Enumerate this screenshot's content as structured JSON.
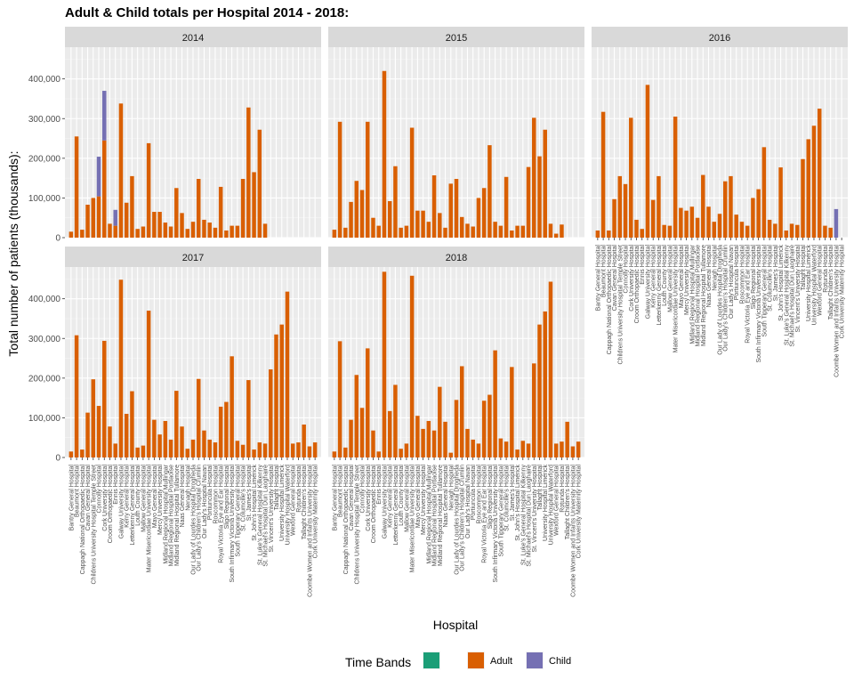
{
  "chart_data": {
    "type": "bar",
    "title": "Adult & Child totals per Hospital 2014 - 2018:",
    "xlabel": "Hospital",
    "ylabel": "Total number of patients (thousands):",
    "ylim": [
      0,
      480000
    ],
    "y_ticks": [
      0,
      100000,
      200000,
      300000,
      400000
    ],
    "y_tick_labels": [
      "0",
      "100,000",
      "200,000",
      "300,000",
      "400,000"
    ],
    "grid": true,
    "facet_by": "year",
    "legend": {
      "title": "Time Bands",
      "position": "bottom",
      "entries": [
        {
          "name": "",
          "color": "#1b9e77"
        },
        {
          "name": "Adult",
          "color": "#d95f02"
        },
        {
          "name": "Child",
          "color": "#7570b3"
        }
      ]
    },
    "categories": [
      "Bantry General Hospital",
      "Beaumont Hospital",
      "Cappagh National Orthopaedic Hospital",
      "Cavan General Hospital",
      "Childrens University Hospital Temple Street",
      "Connolly Hospital",
      "Cork University Hospital",
      "Croom Orthopaedic Hospital",
      "Ennis Hospital",
      "Galway University Hospital",
      "Kerry General Hospital",
      "Letterkenny General Hospital",
      "Louth County Hospital",
      "Mallow General Hospital",
      "Mater Misericordiae University Hospital",
      "Mayo General Hospital",
      "Mercy University Hospital",
      "Midland Regional Hospital Mullingar",
      "Midland Regional Hospital Portlaoise",
      "Midland Regional Hospital Tullamore",
      "Naas General Hospital",
      "Nenagh Hospital",
      "Our Lady of Lourdes Hospital Drogheda",
      "Our Lady's Children's Hospital Crumlin",
      "Our Lady's Hospital Navan",
      "Portiuncula Hospital",
      "Roscommon Hospital",
      "Royal Victoria Eye and Ear Hospital",
      "Sligo Regional Hospital",
      "South Infirmary Victoria University Hospital",
      "South Tipperary General Hospital",
      "St. Columcille's Hospital",
      "St. James's Hospital",
      "St. John's Hospital Limerick",
      "St. Luke's General Hospital Kilkenny",
      "St. Michael's Hospital Dun Laoghaire",
      "St. Vincent's University Hospital",
      "Tallaght Hospital",
      "University Hospital Limerick",
      "University Hospital Waterford",
      "Wexford General Hospital",
      "Rotunda Hospital",
      "Tallaght Children's Hospital",
      "Coombe Women and Infants University Hospital",
      "Cork University Maternity Hospital"
    ],
    "panels": [
      {
        "label": "2014",
        "adult": [
          15000,
          255000,
          20000,
          83000,
          100000,
          104000,
          245000,
          35000,
          30000,
          338000,
          88000,
          155000,
          22000,
          28000,
          238000,
          65000,
          65000,
          38000,
          28000,
          125000,
          62000,
          22000,
          40000,
          148000,
          45000,
          38000,
          25000,
          128000,
          18000,
          30000,
          30000,
          148000,
          328000,
          165000,
          272000,
          35000,
          0,
          0,
          0,
          0,
          0,
          0,
          0,
          0,
          0
        ],
        "child": [
          0,
          0,
          0,
          0,
          0,
          100000,
          125000,
          0,
          40000,
          0,
          0,
          0,
          0,
          0,
          0,
          0,
          0,
          0,
          0,
          0,
          0,
          0,
          0,
          0,
          0,
          0,
          0,
          0,
          0,
          0,
          0,
          0,
          0,
          0,
          0,
          0,
          0,
          0,
          0,
          0,
          0,
          0,
          0,
          0,
          0
        ]
      },
      {
        "label": "2015",
        "adult": [
          20000,
          292000,
          25000,
          90000,
          143000,
          120000,
          292000,
          50000,
          30000,
          420000,
          92000,
          180000,
          25000,
          30000,
          277000,
          68000,
          68000,
          40000,
          157000,
          62000,
          25000,
          136000,
          148000,
          52000,
          35000,
          28000,
          100000,
          125000,
          233000,
          40000,
          30000,
          153000,
          18000,
          30000,
          30000,
          178000,
          302000,
          205000,
          272000,
          35000,
          10000,
          33000,
          0,
          0,
          0
        ],
        "child": [
          0,
          0,
          0,
          0,
          0,
          0,
          0,
          0,
          0,
          0,
          0,
          0,
          0,
          0,
          0,
          0,
          0,
          0,
          0,
          0,
          0,
          0,
          0,
          0,
          0,
          0,
          0,
          0,
          0,
          0,
          0,
          0,
          0,
          0,
          0,
          0,
          0,
          0,
          0,
          0,
          0,
          0,
          0,
          0,
          0
        ]
      },
      {
        "label": "2016",
        "adult": [
          18000,
          317000,
          18000,
          97000,
          155000,
          135000,
          302000,
          45000,
          22000,
          385000,
          95000,
          155000,
          32000,
          30000,
          305000,
          75000,
          68000,
          78000,
          50000,
          158000,
          78000,
          40000,
          60000,
          142000,
          155000,
          58000,
          40000,
          30000,
          100000,
          122000,
          228000,
          45000,
          35000,
          177000,
          18000,
          35000,
          32000,
          198000,
          248000,
          282000,
          325000,
          30000,
          25000,
          0,
          0
        ],
        "child": [
          0,
          0,
          0,
          0,
          0,
          0,
          0,
          0,
          0,
          0,
          0,
          0,
          0,
          0,
          0,
          0,
          0,
          0,
          0,
          0,
          0,
          0,
          0,
          0,
          0,
          0,
          0,
          0,
          0,
          0,
          0,
          0,
          0,
          0,
          0,
          0,
          0,
          0,
          0,
          0,
          0,
          0,
          0,
          72000,
          0
        ]
      },
      {
        "label": "2017",
        "adult": [
          15000,
          308000,
          20000,
          113000,
          197000,
          130000,
          294000,
          78000,
          35000,
          448000,
          110000,
          167000,
          25000,
          30000,
          370000,
          95000,
          58000,
          92000,
          45000,
          168000,
          78000,
          22000,
          45000,
          198000,
          68000,
          45000,
          38000,
          128000,
          140000,
          255000,
          42000,
          32000,
          195000,
          20000,
          38000,
          35000,
          222000,
          310000,
          335000,
          418000,
          35000,
          38000,
          83000,
          28000,
          38000
        ],
        "child": [
          0,
          0,
          0,
          0,
          0,
          0,
          0,
          0,
          0,
          0,
          0,
          0,
          0,
          0,
          0,
          0,
          0,
          0,
          0,
          0,
          0,
          0,
          0,
          0,
          0,
          0,
          0,
          0,
          0,
          0,
          0,
          0,
          0,
          0,
          0,
          0,
          0,
          0,
          0,
          0,
          0,
          0,
          0,
          0,
          0
        ]
      },
      {
        "label": "2018",
        "adult": [
          15000,
          293000,
          25000,
          95000,
          208000,
          125000,
          275000,
          68000,
          15000,
          468000,
          117000,
          183000,
          22000,
          35000,
          458000,
          105000,
          72000,
          92000,
          68000,
          178000,
          90000,
          12000,
          145000,
          230000,
          72000,
          45000,
          35000,
          143000,
          158000,
          270000,
          48000,
          40000,
          228000,
          20000,
          42000,
          35000,
          237000,
          335000,
          368000,
          443000,
          35000,
          40000,
          90000,
          28000,
          40000
        ],
        "child": [
          0,
          0,
          0,
          0,
          0,
          0,
          0,
          0,
          0,
          0,
          0,
          0,
          0,
          0,
          0,
          0,
          0,
          0,
          0,
          0,
          0,
          0,
          0,
          0,
          0,
          0,
          0,
          0,
          0,
          0,
          0,
          0,
          0,
          0,
          0,
          0,
          0,
          0,
          0,
          0,
          0,
          0,
          0,
          0,
          0
        ]
      }
    ]
  }
}
